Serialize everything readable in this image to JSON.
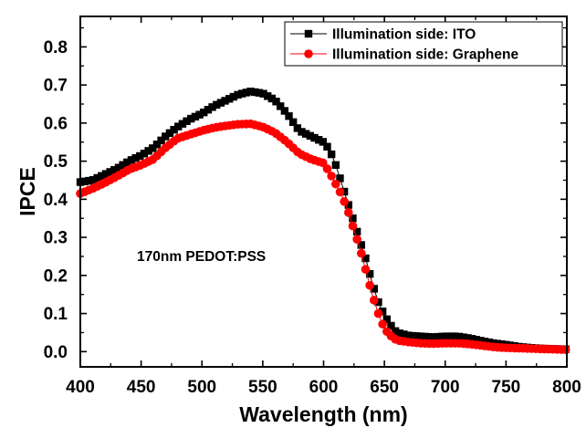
{
  "chart_data": {
    "type": "scatter",
    "title": "",
    "xlabel": "Wavelength (nm)",
    "ylabel": "IPCE",
    "xlim": [
      400,
      800
    ],
    "ylim": [
      -0.04,
      0.88
    ],
    "xticks": [
      400,
      450,
      500,
      550,
      600,
      650,
      700,
      750,
      800
    ],
    "xtick_labels": [
      "400",
      "450",
      "500",
      "550",
      "600",
      "650",
      "700",
      "750",
      "800"
    ],
    "yticks": [
      0.0,
      0.1,
      0.2,
      0.3,
      0.4,
      0.5,
      0.6,
      0.7,
      0.8
    ],
    "ytick_labels": [
      "0.0",
      "0.1",
      "0.2",
      "0.3",
      "0.4",
      "0.5",
      "0.6",
      "0.7",
      "0.8"
    ],
    "grid": false,
    "legend_position": "top-right",
    "annotation": "170nm PEDOT:PSS",
    "series": [
      {
        "name": "Illumination side: ITO",
        "color": "#000000",
        "marker": "square",
        "x": [
          400,
          410,
          420,
          430,
          440,
          450,
          460,
          470,
          480,
          490,
          500,
          510,
          520,
          530,
          540,
          550,
          560,
          570,
          580,
          590,
          600,
          605,
          610,
          615,
          620,
          625,
          630,
          635,
          640,
          645,
          650,
          655,
          660,
          670,
          680,
          690,
          700,
          710,
          720,
          730,
          740,
          750,
          760,
          770,
          780,
          790,
          800
        ],
        "y": [
          0.445,
          0.45,
          0.465,
          0.48,
          0.5,
          0.515,
          0.535,
          0.565,
          0.59,
          0.61,
          0.625,
          0.645,
          0.66,
          0.675,
          0.683,
          0.678,
          0.66,
          0.625,
          0.58,
          0.565,
          0.55,
          0.53,
          0.49,
          0.44,
          0.39,
          0.34,
          0.29,
          0.24,
          0.18,
          0.13,
          0.095,
          0.07,
          0.05,
          0.042,
          0.04,
          0.038,
          0.04,
          0.04,
          0.035,
          0.028,
          0.022,
          0.018,
          0.013,
          0.01,
          0.008,
          0.007,
          0.006
        ]
      },
      {
        "name": "Illumination side: Graphene",
        "color": "#ff0000",
        "marker": "circle",
        "x": [
          400,
          410,
          420,
          430,
          440,
          450,
          460,
          470,
          480,
          490,
          500,
          510,
          520,
          530,
          540,
          550,
          560,
          570,
          580,
          590,
          600,
          605,
          610,
          615,
          620,
          625,
          630,
          635,
          640,
          645,
          650,
          655,
          660,
          670,
          680,
          690,
          700,
          710,
          720,
          730,
          740,
          750,
          760,
          770,
          780,
          790,
          800
        ],
        "y": [
          0.415,
          0.428,
          0.443,
          0.46,
          0.478,
          0.49,
          0.505,
          0.535,
          0.56,
          0.57,
          0.58,
          0.588,
          0.593,
          0.597,
          0.598,
          0.59,
          0.575,
          0.55,
          0.52,
          0.505,
          0.495,
          0.47,
          0.44,
          0.41,
          0.37,
          0.32,
          0.27,
          0.21,
          0.15,
          0.1,
          0.06,
          0.042,
          0.03,
          0.025,
          0.022,
          0.021,
          0.022,
          0.022,
          0.02,
          0.016,
          0.012,
          0.01,
          0.009,
          0.008,
          0.007,
          0.006,
          0.005
        ]
      }
    ]
  }
}
